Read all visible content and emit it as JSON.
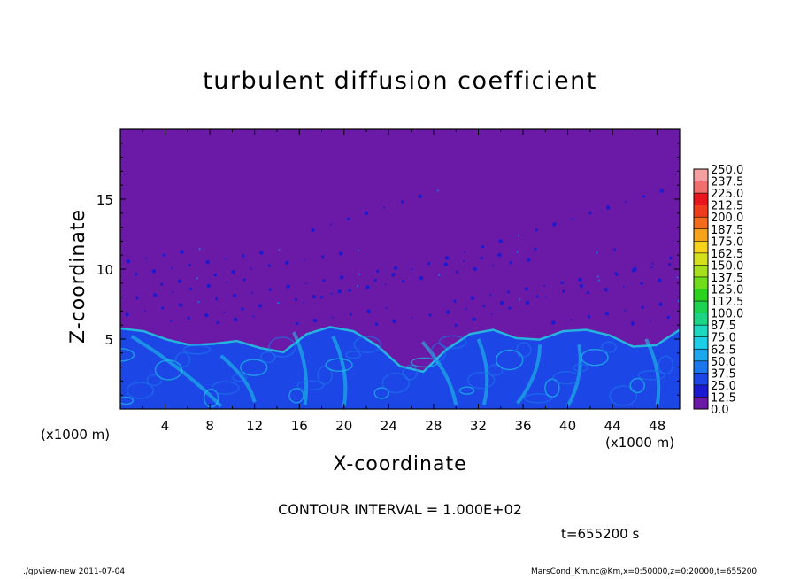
{
  "chart_data": {
    "type": "heatmap",
    "title": "turbulent diffusion coefficient",
    "xlabel": "X-coordinate",
    "ylabel": "Z-coordinate",
    "x_unit_left": "(x1000 m)",
    "x_unit_right": "(x1000 m)",
    "xlim": [
      0,
      50
    ],
    "ylim": [
      0,
      20
    ],
    "xticks": [
      4,
      8,
      12,
      16,
      20,
      24,
      28,
      32,
      36,
      40,
      44,
      48
    ],
    "yticks": [
      5,
      10,
      15
    ],
    "colorbar": {
      "levels": [
        "250.0",
        "237.5",
        "225.0",
        "212.5",
        "200.0",
        "187.5",
        "175.0",
        "162.5",
        "150.0",
        "137.5",
        "125.0",
        "112.5",
        "100.0",
        "87.5",
        "75.0",
        "62.5",
        "50.0",
        "37.5",
        "25.0",
        "12.5",
        "0.0"
      ],
      "colors": [
        "#f5a0a0",
        "#f06e6e",
        "#e8161c",
        "#ee3b1b",
        "#f26a1c",
        "#f6a31c",
        "#f9d21c",
        "#d4e01c",
        "#a6e01c",
        "#6fdc1c",
        "#2ad21c",
        "#1cd250",
        "#1cd486",
        "#1cd8c0",
        "#1ccfe6",
        "#1ca6ee",
        "#1a76ec",
        "#1c46e6",
        "#1c1ad0",
        "#6a1aa6"
      ]
    },
    "mixed_layer_top_km": [
      5.7,
      5.5,
      4.9,
      4.5,
      4.6,
      4.8,
      4.3,
      4.0,
      5.3,
      5.8,
      5.5,
      4.5,
      3.0,
      2.6,
      4.2,
      5.3,
      5.6,
      5.0,
      4.9,
      5.5,
      5.6,
      5.2,
      4.4,
      4.5,
      5.6
    ]
  },
  "colors": {
    "background_field": "#6a1aa6",
    "boundary_layer": "#1c46e6",
    "highlight": "#1ccfe6"
  },
  "contour_text": "CONTOUR INTERVAL = 1.000E+02",
  "time_text": "t=655200 s",
  "footer": {
    "left": "./gpview-new  2011-07-04",
    "right": "MarsCond_Km.nc@Km,x=0:50000,z=0:20000,t=655200"
  }
}
